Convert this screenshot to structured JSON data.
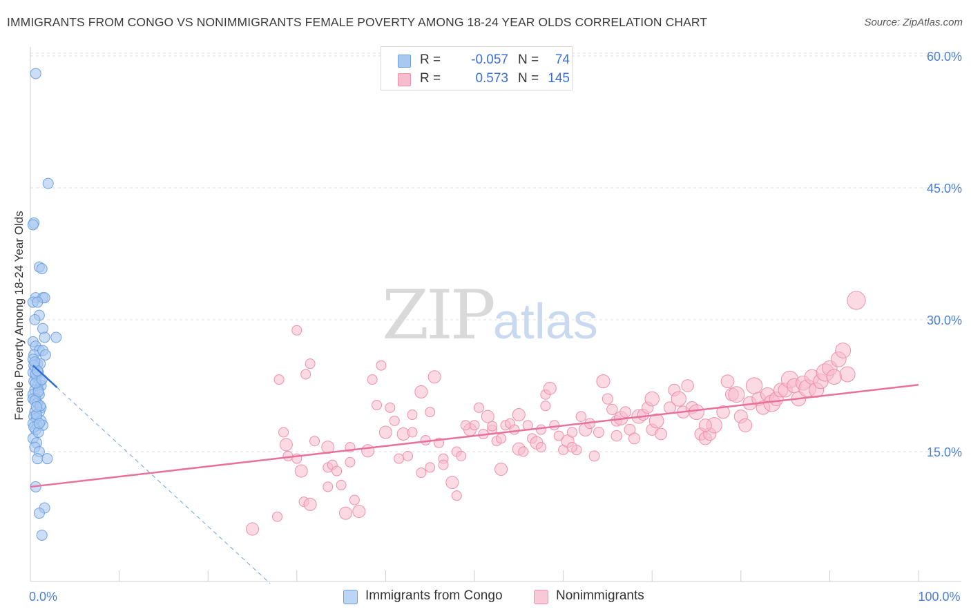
{
  "title": "IMMIGRANTS FROM CONGO VS NONIMMIGRANTS FEMALE POVERTY AMONG 18-24 YEAR OLDS CORRELATION CHART",
  "source": "Source: ZipAtlas.com",
  "watermark": {
    "zip": "ZIP",
    "atlas": "atlas"
  },
  "legend_top": {
    "rows": [
      {
        "label": "R =",
        "r": "-0.057",
        "n_label": "N =",
        "n": "74"
      },
      {
        "label": "R =",
        "r": "0.573",
        "n_label": "N =",
        "n": "145"
      }
    ]
  },
  "colors": {
    "congo_fill": "#a8c8f0",
    "congo_stroke": "#6fa0e0",
    "congo_line": "#2f6fd0",
    "non_fill": "#f7bccd",
    "non_stroke": "#ee8fab",
    "non_line": "#e8709a",
    "tick_label": "#4a7fd4",
    "grid": "#dddddd"
  },
  "chart_data": {
    "type": "scatter",
    "title": "IMMIGRANTS FROM CONGO VS NONIMMIGRANTS FEMALE POVERTY AMONG 18-24 YEAR OLDS CORRELATION CHART",
    "xlabel": "",
    "ylabel": "Female Poverty Among 18-24 Year Olds",
    "xlim": [
      0,
      100
    ],
    "ylim": [
      0,
      63
    ],
    "x_ticks": [
      0,
      10,
      20,
      30,
      40,
      50,
      60,
      70,
      80,
      90,
      100
    ],
    "x_tick_labels": [
      {
        "value": 0,
        "label": "0.0%"
      },
      {
        "value": 100,
        "label": "100.0%"
      }
    ],
    "y_ticks": [
      {
        "value": 15,
        "label": "15.0%"
      },
      {
        "value": 30,
        "label": "30.0%"
      },
      {
        "value": 45,
        "label": "45.0%"
      },
      {
        "value": 60,
        "label": "60.0%"
      }
    ],
    "series": [
      {
        "name": "Immigrants from Congo",
        "R": -0.057,
        "N": 74,
        "trend": {
          "x": [
            0.3,
            3.0
          ],
          "y": [
            24.8,
            22.3
          ]
        },
        "trend_ext": {
          "x": [
            3.0,
            27.0
          ],
          "y": [
            22.3,
            0
          ]
        },
        "points": [
          [
            0.6,
            58
          ],
          [
            2.0,
            45.5
          ],
          [
            0.4,
            41
          ],
          [
            0.3,
            40.8
          ],
          [
            1.0,
            36
          ],
          [
            1.3,
            35.8
          ],
          [
            0.6,
            32.5
          ],
          [
            1.4,
            32.5
          ],
          [
            1.6,
            32.5
          ],
          [
            0.3,
            32
          ],
          [
            0.8,
            32
          ],
          [
            1.0,
            30.5
          ],
          [
            0.5,
            30
          ],
          [
            1.4,
            29
          ],
          [
            1.6,
            28
          ],
          [
            2.9,
            28
          ],
          [
            0.3,
            27.5
          ],
          [
            0.6,
            27
          ],
          [
            1.0,
            26.5
          ],
          [
            1.4,
            26.5
          ],
          [
            0.4,
            26
          ],
          [
            1.7,
            26
          ],
          [
            0.3,
            25.5
          ],
          [
            0.8,
            25
          ],
          [
            1.1,
            25
          ],
          [
            0.5,
            24.5
          ],
          [
            0.9,
            24
          ],
          [
            0.3,
            24
          ],
          [
            0.7,
            23.5
          ],
          [
            0.4,
            23
          ],
          [
            1.1,
            23
          ],
          [
            0.8,
            22.5
          ],
          [
            1.2,
            22.5
          ],
          [
            0.5,
            22
          ],
          [
            0.9,
            22
          ],
          [
            0.3,
            21.5
          ],
          [
            1.0,
            21.5
          ],
          [
            0.6,
            21
          ],
          [
            0.3,
            21
          ],
          [
            0.8,
            20.5
          ],
          [
            1.2,
            20
          ],
          [
            0.5,
            19.5
          ],
          [
            1.0,
            19.5
          ],
          [
            0.4,
            19
          ],
          [
            0.7,
            18.8
          ],
          [
            1.2,
            18.5
          ],
          [
            0.3,
            18.2
          ],
          [
            0.8,
            18
          ],
          [
            1.4,
            18
          ],
          [
            0.6,
            17.5
          ],
          [
            0.3,
            16.5
          ],
          [
            0.7,
            16
          ],
          [
            0.5,
            15.5
          ],
          [
            1.0,
            15
          ],
          [
            0.8,
            14.2
          ],
          [
            1.9,
            14.2
          ],
          [
            0.6,
            11
          ],
          [
            1.6,
            8.6
          ],
          [
            1.0,
            8
          ],
          [
            1.3,
            5.5
          ],
          [
            0.4,
            24.8
          ],
          [
            0.6,
            23.8
          ],
          [
            0.9,
            21.8
          ],
          [
            0.5,
            20.8
          ],
          [
            1.1,
            20.2
          ],
          [
            0.7,
            19.2
          ],
          [
            0.4,
            17.8
          ],
          [
            0.9,
            17.2
          ],
          [
            0.6,
            22.8
          ],
          [
            1.3,
            23.2
          ],
          [
            0.8,
            24.2
          ],
          [
            0.5,
            25.2
          ],
          [
            1.0,
            18.2
          ],
          [
            0.7,
            20.1
          ]
        ]
      },
      {
        "name": "Nonimmigrants",
        "R": 0.573,
        "N": 145,
        "trend": {
          "x": [
            0,
            100
          ],
          "y": [
            11.0,
            22.6
          ]
        },
        "points": [
          [
            25,
            6.2
          ],
          [
            27.8,
            7.6
          ],
          [
            28,
            23.2
          ],
          [
            28.5,
            17.2
          ],
          [
            28.8,
            15.8
          ],
          [
            29,
            14.5
          ],
          [
            30,
            28.8
          ],
          [
            30,
            14.2
          ],
          [
            30.5,
            12.8
          ],
          [
            30.8,
            9.3
          ],
          [
            31,
            23.8
          ],
          [
            31.5,
            25
          ],
          [
            31.5,
            9
          ],
          [
            32,
            16.2
          ],
          [
            33.5,
            13.2
          ],
          [
            33.5,
            11
          ],
          [
            33.5,
            15.5
          ],
          [
            34,
            13.5
          ],
          [
            34.5,
            12.8
          ],
          [
            35,
            11.2
          ],
          [
            35.5,
            8
          ],
          [
            36,
            15.5
          ],
          [
            36,
            13.8
          ],
          [
            36.5,
            9.5
          ],
          [
            37,
            8.2
          ],
          [
            38.5,
            23.2
          ],
          [
            39,
            20.3
          ],
          [
            39.5,
            24.8
          ],
          [
            40,
            17.2
          ],
          [
            40.5,
            20
          ],
          [
            41,
            18.5
          ],
          [
            41.5,
            14.2
          ],
          [
            42,
            17
          ],
          [
            42.5,
            14.5
          ],
          [
            43,
            19.2
          ],
          [
            43,
            17.2
          ],
          [
            44,
            21.8
          ],
          [
            44,
            12.6
          ],
          [
            44.5,
            16.3
          ],
          [
            45,
            13.2
          ],
          [
            45.5,
            23.5
          ],
          [
            46,
            16
          ],
          [
            46.5,
            14.2
          ],
          [
            46.5,
            13.5
          ],
          [
            47.5,
            11.5
          ],
          [
            48,
            10
          ],
          [
            48,
            15
          ],
          [
            48.5,
            14.5
          ],
          [
            49.5,
            17.5
          ],
          [
            50,
            18
          ],
          [
            50.5,
            20
          ],
          [
            51,
            17
          ],
          [
            51.5,
            19
          ],
          [
            52,
            17.5
          ],
          [
            52.5,
            16.2
          ],
          [
            53,
            16.5
          ],
          [
            53,
            13
          ],
          [
            53.5,
            18
          ],
          [
            54,
            18.2
          ],
          [
            54.5,
            17.5
          ],
          [
            55,
            15.3
          ],
          [
            55.5,
            15
          ],
          [
            56,
            18
          ],
          [
            56.5,
            16.5
          ],
          [
            57,
            16
          ],
          [
            57.5,
            15.5
          ],
          [
            57.5,
            17.5
          ],
          [
            58,
            21.5
          ],
          [
            58.5,
            22.2
          ],
          [
            59,
            18
          ],
          [
            59.5,
            16.8
          ],
          [
            60,
            15.2
          ],
          [
            60.5,
            16.2
          ],
          [
            61,
            17.2
          ],
          [
            61.5,
            15.2
          ],
          [
            62,
            19
          ],
          [
            62.5,
            17.5
          ],
          [
            63,
            18.2
          ],
          [
            63.5,
            14.5
          ],
          [
            64,
            17.2
          ],
          [
            64.5,
            23
          ],
          [
            65,
            21
          ],
          [
            65.5,
            19.8
          ],
          [
            66,
            18.5
          ],
          [
            66.5,
            18.8
          ],
          [
            67,
            19.5
          ],
          [
            67.5,
            17.5
          ],
          [
            68,
            16.5
          ],
          [
            68.5,
            19
          ],
          [
            69,
            19.2
          ],
          [
            69.5,
            20
          ],
          [
            70,
            17.5
          ],
          [
            70.5,
            18.5
          ],
          [
            71,
            17
          ],
          [
            72,
            20
          ],
          [
            72.5,
            22
          ],
          [
            73,
            21
          ],
          [
            73.5,
            19.5
          ],
          [
            74,
            22.5
          ],
          [
            74.5,
            20
          ],
          [
            75,
            19.5
          ],
          [
            75.5,
            17
          ],
          [
            76,
            16.5
          ],
          [
            76.5,
            17
          ],
          [
            77,
            18
          ],
          [
            78,
            19.5
          ],
          [
            78.5,
            23
          ],
          [
            79,
            21.5
          ],
          [
            79.5,
            21.5
          ],
          [
            80,
            19
          ],
          [
            80.5,
            18
          ],
          [
            81,
            20.5
          ],
          [
            81.5,
            22.5
          ],
          [
            82,
            21
          ],
          [
            82.5,
            20
          ],
          [
            83,
            21.5
          ],
          [
            83.5,
            20.5
          ],
          [
            84,
            21
          ],
          [
            84.5,
            22
          ],
          [
            85,
            22
          ],
          [
            85.5,
            23.2
          ],
          [
            86,
            22.5
          ],
          [
            86.5,
            21
          ],
          [
            87,
            22.8
          ],
          [
            87.5,
            22.2
          ],
          [
            88,
            23.5
          ],
          [
            88.5,
            22
          ],
          [
            89,
            23
          ],
          [
            89.5,
            24
          ],
          [
            90,
            24.5
          ],
          [
            90.5,
            23.5
          ],
          [
            91,
            25.5
          ],
          [
            93,
            32.2
          ],
          [
            91.5,
            26.5
          ],
          [
            92,
            23.8
          ],
          [
            76,
            18
          ],
          [
            70,
            21
          ],
          [
            66,
            16.8
          ],
          [
            61,
            15.5
          ],
          [
            58,
            20.2
          ],
          [
            55,
            19.2
          ],
          [
            52,
            17.9
          ],
          [
            49,
            18
          ],
          [
            45,
            19.5
          ],
          [
            38,
            15.1
          ]
        ]
      }
    ]
  },
  "legend_bottom": [
    "Immigrants from Congo",
    "Nonimmigrants"
  ]
}
